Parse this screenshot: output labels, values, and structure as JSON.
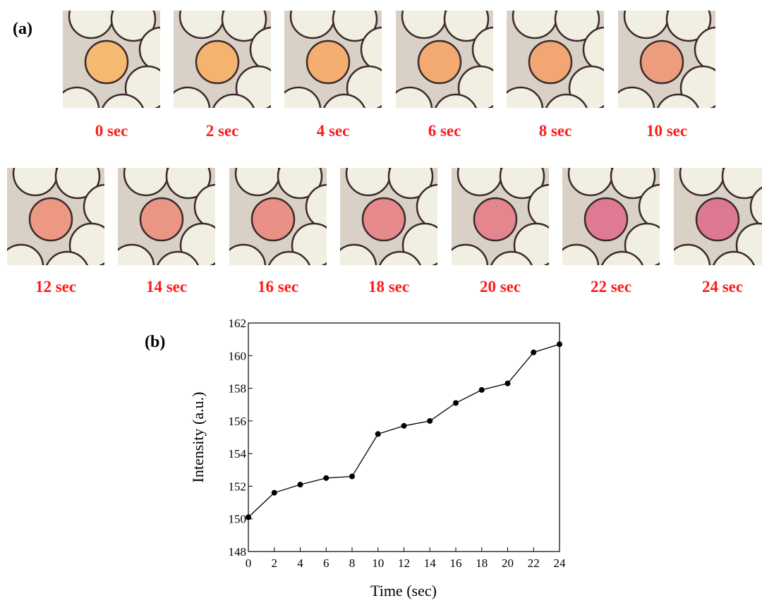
{
  "panel_a": {
    "label": "(a)",
    "frames": [
      {
        "label": "0 sec",
        "color": "#f6b971"
      },
      {
        "label": "2 sec",
        "color": "#f4b36e"
      },
      {
        "label": "4 sec",
        "color": "#f3ae70"
      },
      {
        "label": "6 sec",
        "color": "#f2aa72"
      },
      {
        "label": "8 sec",
        "color": "#f1a674"
      },
      {
        "label": "10 sec",
        "color": "#ee9c7e"
      },
      {
        "label": "12 sec",
        "color": "#ec9882"
      },
      {
        "label": "14 sec",
        "color": "#ea9684"
      },
      {
        "label": "16 sec",
        "color": "#e99087"
      },
      {
        "label": "18 sec",
        "color": "#e68a8c"
      },
      {
        "label": "20 sec",
        "color": "#e5868e"
      },
      {
        "label": "22 sec",
        "color": "#df7a92"
      },
      {
        "label": "24 sec",
        "color": "#dd7893"
      }
    ]
  },
  "chart_data": {
    "type": "line",
    "panel_label": "(b)",
    "x_label": "Time (sec)",
    "y_label": "Intensity (a.u.)",
    "x": [
      0,
      2,
      4,
      6,
      8,
      10,
      12,
      14,
      16,
      18,
      20,
      22,
      24
    ],
    "values": [
      150.1,
      151.6,
      152.1,
      152.5,
      152.6,
      155.2,
      155.7,
      156.0,
      157.1,
      157.9,
      158.3,
      160.2,
      160.7
    ],
    "color": "#000000",
    "xlim": [
      0,
      24
    ],
    "xticks": [
      0,
      2,
      4,
      6,
      8,
      10,
      12,
      14,
      16,
      18,
      20,
      22,
      24
    ],
    "ylim": [
      148,
      162
    ],
    "yticks": [
      148,
      150,
      152,
      154,
      156,
      158,
      160,
      162
    ]
  }
}
